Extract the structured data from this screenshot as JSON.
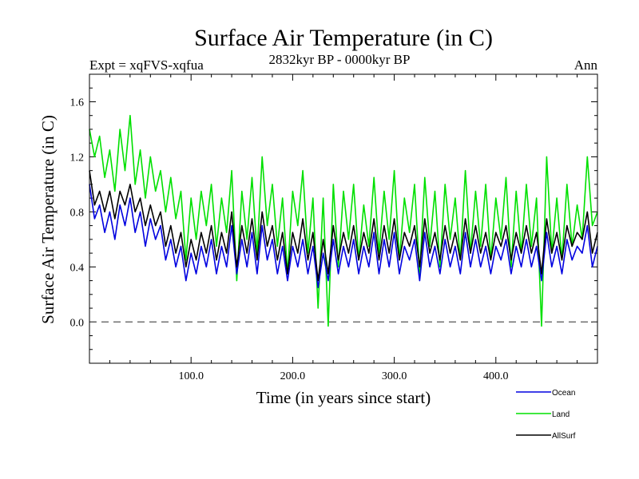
{
  "chart_data": {
    "type": "line",
    "title": "Surface Air Temperature (in C)",
    "subtitle": "2832kyr BP - 0000kyr BP",
    "left_label": "Expt = xqFVS-xqfua",
    "right_label": "Ann",
    "xlabel": "Time (in years since start)",
    "ylabel": "Surface Air Temperature (in C)",
    "xlim": [
      0,
      500
    ],
    "ylim": [
      -0.3,
      1.8
    ],
    "x_ticks": [
      {
        "value": 100,
        "label": "100.0"
      },
      {
        "value": 200,
        "label": "200.0"
      },
      {
        "value": 300,
        "label": "300.0"
      },
      {
        "value": 400,
        "label": "400.0"
      }
    ],
    "y_ticks": [
      {
        "value": 0.0,
        "label": "0.0"
      },
      {
        "value": 0.4,
        "label": "0.4"
      },
      {
        "value": 0.8,
        "label": "0.8"
      },
      {
        "value": 1.2,
        "label": "1.2"
      },
      {
        "value": 1.6,
        "label": "1.6"
      }
    ],
    "reference_line": {
      "y": 0.0,
      "style": "dashed"
    },
    "legend_placement": "bottom-right",
    "series": [
      {
        "name": "Land",
        "color": "#00e000",
        "x": [
          0,
          5,
          10,
          15,
          20,
          25,
          30,
          35,
          40,
          45,
          50,
          55,
          60,
          65,
          70,
          75,
          80,
          85,
          90,
          95,
          100,
          105,
          110,
          115,
          120,
          125,
          130,
          135,
          140,
          145,
          150,
          155,
          160,
          165,
          170,
          175,
          180,
          185,
          190,
          195,
          200,
          205,
          210,
          215,
          220,
          225,
          230,
          235,
          240,
          245,
          250,
          255,
          260,
          265,
          270,
          275,
          280,
          285,
          290,
          295,
          300,
          305,
          310,
          315,
          320,
          325,
          330,
          335,
          340,
          345,
          350,
          355,
          360,
          365,
          370,
          375,
          380,
          385,
          390,
          395,
          400,
          405,
          410,
          415,
          420,
          425,
          430,
          435,
          440,
          445,
          450,
          455,
          460,
          465,
          470,
          475,
          480,
          485,
          490,
          495,
          500
        ],
        "values": [
          1.4,
          1.2,
          1.35,
          1.05,
          1.25,
          0.95,
          1.4,
          1.1,
          1.5,
          1.0,
          1.25,
          0.9,
          1.2,
          0.95,
          1.1,
          0.8,
          1.05,
          0.75,
          0.95,
          0.45,
          0.9,
          0.6,
          0.95,
          0.7,
          1.0,
          0.55,
          0.9,
          0.65,
          1.1,
          0.3,
          0.95,
          0.6,
          1.05,
          0.5,
          1.2,
          0.7,
          1.0,
          0.55,
          0.9,
          0.35,
          0.95,
          0.7,
          1.1,
          0.5,
          0.9,
          0.1,
          0.9,
          -0.03,
          1.0,
          0.4,
          0.95,
          0.6,
          1.0,
          0.45,
          0.85,
          0.55,
          1.05,
          0.5,
          0.95,
          0.6,
          1.1,
          0.45,
          0.9,
          0.65,
          1.0,
          0.35,
          1.05,
          0.55,
          0.95,
          0.4,
          1.0,
          0.6,
          0.9,
          0.45,
          1.1,
          0.5,
          0.95,
          0.55,
          1.0,
          0.45,
          0.9,
          0.6,
          1.05,
          0.4,
          0.95,
          0.5,
          1.0,
          0.55,
          0.9,
          -0.03,
          1.2,
          0.5,
          0.9,
          0.45,
          1.0,
          0.55,
          0.85,
          0.6,
          1.2,
          0.7,
          0.8
        ]
      },
      {
        "name": "Ocean",
        "color": "#0000e0",
        "x": [
          0,
          5,
          10,
          15,
          20,
          25,
          30,
          35,
          40,
          45,
          50,
          55,
          60,
          65,
          70,
          75,
          80,
          85,
          90,
          95,
          100,
          105,
          110,
          115,
          120,
          125,
          130,
          135,
          140,
          145,
          150,
          155,
          160,
          165,
          170,
          175,
          180,
          185,
          190,
          195,
          200,
          205,
          210,
          215,
          220,
          225,
          230,
          235,
          240,
          245,
          250,
          255,
          260,
          265,
          270,
          275,
          280,
          285,
          290,
          295,
          300,
          305,
          310,
          315,
          320,
          325,
          330,
          335,
          340,
          345,
          350,
          355,
          360,
          365,
          370,
          375,
          380,
          385,
          390,
          395,
          400,
          405,
          410,
          415,
          420,
          425,
          430,
          435,
          440,
          445,
          450,
          455,
          460,
          465,
          470,
          475,
          480,
          485,
          490,
          495,
          500
        ],
        "values": [
          1.0,
          0.75,
          0.85,
          0.65,
          0.8,
          0.6,
          0.85,
          0.7,
          0.9,
          0.65,
          0.8,
          0.55,
          0.75,
          0.6,
          0.7,
          0.45,
          0.6,
          0.4,
          0.55,
          0.3,
          0.5,
          0.35,
          0.55,
          0.4,
          0.6,
          0.35,
          0.55,
          0.4,
          0.7,
          0.35,
          0.6,
          0.4,
          0.65,
          0.35,
          0.7,
          0.45,
          0.6,
          0.35,
          0.55,
          0.3,
          0.55,
          0.4,
          0.6,
          0.35,
          0.55,
          0.25,
          0.5,
          0.3,
          0.6,
          0.35,
          0.55,
          0.4,
          0.6,
          0.35,
          0.55,
          0.4,
          0.65,
          0.35,
          0.6,
          0.4,
          0.65,
          0.35,
          0.55,
          0.45,
          0.6,
          0.3,
          0.65,
          0.4,
          0.55,
          0.35,
          0.6,
          0.4,
          0.55,
          0.35,
          0.65,
          0.4,
          0.6,
          0.4,
          0.55,
          0.35,
          0.55,
          0.45,
          0.6,
          0.35,
          0.55,
          0.4,
          0.6,
          0.4,
          0.55,
          0.3,
          0.65,
          0.4,
          0.55,
          0.35,
          0.6,
          0.45,
          0.55,
          0.5,
          0.7,
          0.4,
          0.55
        ]
      },
      {
        "name": "AllSurf",
        "color": "#000000",
        "x": [
          0,
          5,
          10,
          15,
          20,
          25,
          30,
          35,
          40,
          45,
          50,
          55,
          60,
          65,
          70,
          75,
          80,
          85,
          90,
          95,
          100,
          105,
          110,
          115,
          120,
          125,
          130,
          135,
          140,
          145,
          150,
          155,
          160,
          165,
          170,
          175,
          180,
          185,
          190,
          195,
          200,
          205,
          210,
          215,
          220,
          225,
          230,
          235,
          240,
          245,
          250,
          255,
          260,
          265,
          270,
          275,
          280,
          285,
          290,
          295,
          300,
          305,
          310,
          315,
          320,
          325,
          330,
          335,
          340,
          345,
          350,
          355,
          360,
          365,
          370,
          375,
          380,
          385,
          390,
          395,
          400,
          405,
          410,
          415,
          420,
          425,
          430,
          435,
          440,
          445,
          450,
          455,
          460,
          465,
          470,
          475,
          480,
          485,
          490,
          495,
          500
        ],
        "values": [
          1.1,
          0.85,
          0.95,
          0.8,
          0.95,
          0.75,
          0.95,
          0.85,
          1.0,
          0.8,
          0.9,
          0.7,
          0.85,
          0.7,
          0.8,
          0.55,
          0.7,
          0.5,
          0.65,
          0.4,
          0.6,
          0.45,
          0.65,
          0.5,
          0.7,
          0.45,
          0.65,
          0.5,
          0.8,
          0.4,
          0.7,
          0.5,
          0.75,
          0.45,
          0.8,
          0.55,
          0.7,
          0.45,
          0.65,
          0.35,
          0.65,
          0.5,
          0.75,
          0.45,
          0.65,
          0.3,
          0.6,
          0.35,
          0.7,
          0.45,
          0.65,
          0.5,
          0.7,
          0.45,
          0.65,
          0.5,
          0.75,
          0.45,
          0.7,
          0.5,
          0.75,
          0.45,
          0.65,
          0.55,
          0.7,
          0.4,
          0.75,
          0.5,
          0.65,
          0.45,
          0.7,
          0.5,
          0.65,
          0.45,
          0.75,
          0.5,
          0.7,
          0.5,
          0.65,
          0.45,
          0.65,
          0.55,
          0.7,
          0.45,
          0.65,
          0.5,
          0.7,
          0.5,
          0.65,
          0.35,
          0.75,
          0.5,
          0.65,
          0.45,
          0.7,
          0.55,
          0.65,
          0.6,
          0.8,
          0.5,
          0.65
        ]
      }
    ]
  }
}
